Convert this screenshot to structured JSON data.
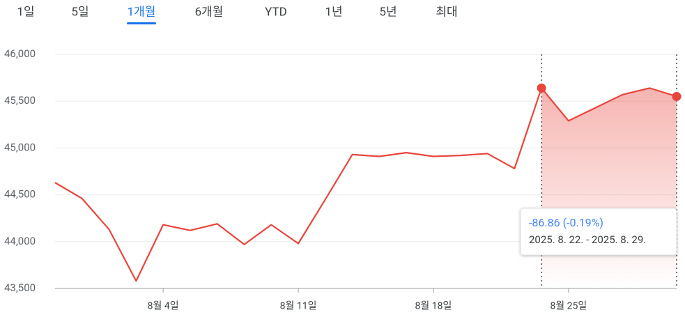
{
  "tabs": [
    "1일",
    "5일",
    "1개월",
    "6개월",
    "YTD",
    "1년",
    "5년",
    "최대"
  ],
  "selected_tab": 2,
  "chart_data": {
    "type": "line",
    "categories": [
      null,
      null,
      null,
      null,
      "8월 4일",
      null,
      null,
      null,
      null,
      "8월 11일",
      null,
      null,
      null,
      null,
      "8월 18일",
      null,
      null,
      null,
      null,
      "8월 25일",
      null,
      null,
      null,
      null
    ],
    "series": [
      {
        "color": "#e8453c",
        "values": [
          44630,
          44460,
          44130,
          43580,
          44180,
          44120,
          44190,
          43970,
          44180,
          43980,
          44450,
          44930,
          44910,
          44950,
          44910,
          44920,
          44940,
          44780,
          45640,
          45290,
          45430,
          45570,
          45640,
          45550
        ]
      }
    ],
    "ylim": [
      43500,
      46000
    ],
    "yticks": [
      {
        "value": 43500,
        "label": "43,500"
      },
      {
        "value": 44000,
        "label": "44,000"
      },
      {
        "value": 44500,
        "label": "44,500"
      },
      {
        "value": 45000,
        "label": "45,000"
      },
      {
        "value": 45500,
        "label": "45,500"
      },
      {
        "value": 46000,
        "label": "46,000"
      }
    ],
    "grid": true,
    "highlight_range": [
      18,
      23
    ],
    "tooltip": {
      "change": "-86.86 (-0.19%)",
      "period": "2025. 8. 22. - 2025. 8. 29."
    }
  }
}
